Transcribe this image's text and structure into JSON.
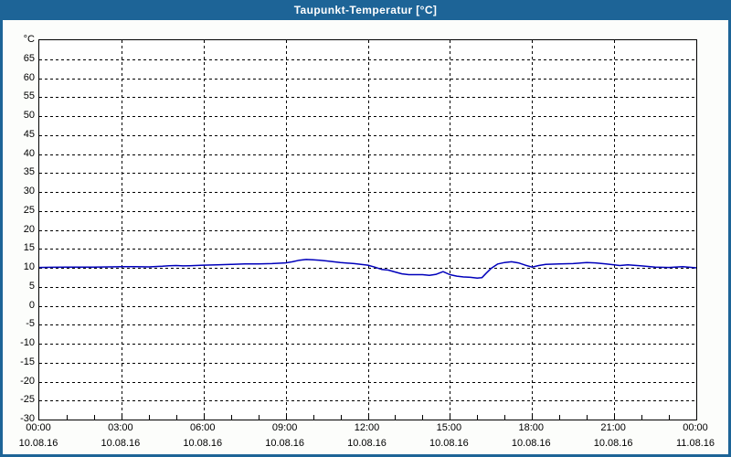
{
  "window": {
    "title": "Taupunkt-Temperatur [°C]"
  },
  "colors": {
    "titlebar_bg": "#1D6497",
    "titlebar_text": "#FFFFFF",
    "window_border": "#1D6497",
    "content_bg": "#FCFDFB",
    "plot_bg": "#FFFFFF",
    "plot_border": "#000000",
    "grid": "#000000",
    "line": "#0000BB",
    "label_text": "#000000"
  },
  "chart_data": {
    "type": "line",
    "title": "Taupunkt-Temperatur [°C]",
    "grid": "dashed",
    "legend_position": "none",
    "ylim": [
      -30,
      70
    ],
    "x_range_hours": [
      0,
      24
    ],
    "x_minor_tick_hours": 1,
    "y_ticks": [
      {
        "value": 70,
        "label": "°C"
      },
      {
        "value": 65,
        "label": "65"
      },
      {
        "value": 60,
        "label": "60"
      },
      {
        "value": 55,
        "label": "55"
      },
      {
        "value": 50,
        "label": "50"
      },
      {
        "value": 45,
        "label": "45"
      },
      {
        "value": 40,
        "label": "40"
      },
      {
        "value": 35,
        "label": "35"
      },
      {
        "value": 30,
        "label": "30"
      },
      {
        "value": 25,
        "label": "25"
      },
      {
        "value": 20,
        "label": "20"
      },
      {
        "value": 15,
        "label": "15"
      },
      {
        "value": 10,
        "label": "10"
      },
      {
        "value": 5,
        "label": "5"
      },
      {
        "value": 0,
        "label": "0"
      },
      {
        "value": -5,
        "label": "-5"
      },
      {
        "value": -10,
        "label": "-10"
      },
      {
        "value": -15,
        "label": "-15"
      },
      {
        "value": -20,
        "label": "-20"
      },
      {
        "value": -25,
        "label": "-25"
      },
      {
        "value": -30,
        "label": "-30"
      }
    ],
    "x_ticks": [
      {
        "hour": 0,
        "time": "00:00",
        "date": "10.08.16"
      },
      {
        "hour": 3,
        "time": "03:00",
        "date": "10.08.16"
      },
      {
        "hour": 6,
        "time": "06:00",
        "date": "10.08.16"
      },
      {
        "hour": 9,
        "time": "09:00",
        "date": "10.08.16"
      },
      {
        "hour": 12,
        "time": "12:00",
        "date": "10.08.16"
      },
      {
        "hour": 15,
        "time": "15:00",
        "date": "10.08.16"
      },
      {
        "hour": 18,
        "time": "18:00",
        "date": "10.08.16"
      },
      {
        "hour": 21,
        "time": "21:00",
        "date": "10.08.16"
      },
      {
        "hour": 24,
        "time": "00:00",
        "date": "11.08.16"
      }
    ],
    "series": [
      {
        "name": "Taupunkt-Temperatur",
        "unit": "°C",
        "color": "#0000BB",
        "points": [
          [
            0,
            10.1
          ],
          [
            0.5,
            10.15
          ],
          [
            1,
            10.2
          ],
          [
            1.5,
            10.2
          ],
          [
            2,
            10.2
          ],
          [
            2.5,
            10.25
          ],
          [
            3,
            10.3
          ],
          [
            3.5,
            10.3
          ],
          [
            4,
            10.25
          ],
          [
            4.5,
            10.4
          ],
          [
            4.75,
            10.55
          ],
          [
            5,
            10.6
          ],
          [
            5.25,
            10.5
          ],
          [
            5.5,
            10.55
          ],
          [
            6,
            10.7
          ],
          [
            6.5,
            10.8
          ],
          [
            7,
            10.9
          ],
          [
            7.5,
            11.0
          ],
          [
            8,
            11.0
          ],
          [
            8.5,
            11.1
          ],
          [
            9,
            11.3
          ],
          [
            9.25,
            11.6
          ],
          [
            9.5,
            12.0
          ],
          [
            9.75,
            12.2
          ],
          [
            10,
            12.1
          ],
          [
            10.25,
            12.0
          ],
          [
            10.5,
            11.8
          ],
          [
            11,
            11.4
          ],
          [
            11.5,
            11.1
          ],
          [
            12,
            10.7
          ],
          [
            12.25,
            10.2
          ],
          [
            12.5,
            9.6
          ],
          [
            12.75,
            9.4
          ],
          [
            13,
            8.9
          ],
          [
            13.25,
            8.4
          ],
          [
            13.5,
            8.2
          ],
          [
            14,
            8.2
          ],
          [
            14.25,
            8.0
          ],
          [
            14.5,
            8.3
          ],
          [
            14.75,
            9.0
          ],
          [
            15,
            8.2
          ],
          [
            15.25,
            7.8
          ],
          [
            15.5,
            7.6
          ],
          [
            15.75,
            7.5
          ],
          [
            16,
            7.3
          ],
          [
            16.17,
            7.4
          ],
          [
            16.33,
            8.6
          ],
          [
            16.5,
            9.8
          ],
          [
            16.75,
            11.0
          ],
          [
            17,
            11.4
          ],
          [
            17.25,
            11.6
          ],
          [
            17.5,
            11.3
          ],
          [
            17.75,
            10.7
          ],
          [
            18,
            10.2
          ],
          [
            18.25,
            10.6
          ],
          [
            18.5,
            10.9
          ],
          [
            19,
            11.0
          ],
          [
            19.5,
            11.1
          ],
          [
            20,
            11.4
          ],
          [
            20.3,
            11.3
          ],
          [
            20.7,
            11.0
          ],
          [
            21,
            10.8
          ],
          [
            21.2,
            10.6
          ],
          [
            21.5,
            10.8
          ],
          [
            22,
            10.5
          ],
          [
            22.5,
            10.2
          ],
          [
            23,
            10.1
          ],
          [
            23.5,
            10.3
          ],
          [
            24,
            10.0
          ]
        ]
      }
    ]
  }
}
